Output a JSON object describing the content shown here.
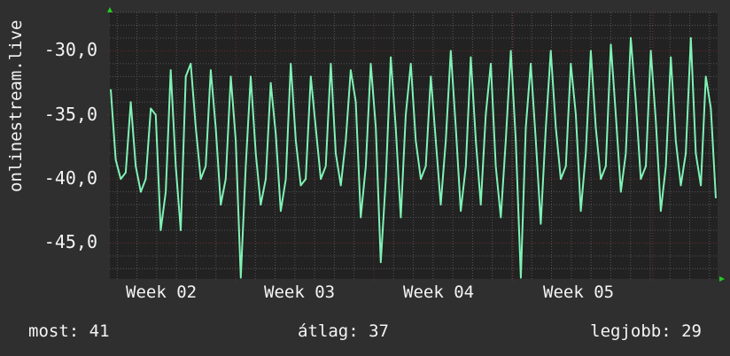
{
  "chart_data": {
    "type": "line",
    "title": "",
    "ylabel": "onlinestream.live",
    "xlabel": "",
    "ylim": [
      -47.8,
      -27
    ],
    "yticks": [
      -30,
      -35,
      -40,
      -45
    ],
    "ytick_labels": [
      "-30,0",
      "-35,0",
      "-40,0",
      "-45,0"
    ],
    "xtick_labels": [
      "Week 02",
      "Week 03",
      "Week 04",
      "Week 05"
    ],
    "grid": true,
    "colors": {
      "background": "#2f2f2f",
      "plot": "#222222",
      "line": "#7ff2b5",
      "grid": "#555555",
      "major_grid": "#6e2c2c",
      "arrow": "#22cc22"
    },
    "series": [
      {
        "values": [
          -33,
          -38.5,
          -40,
          -39.5,
          -34,
          -39,
          -41,
          -40,
          -34.5,
          -35,
          -44,
          -41,
          -31.5,
          -39,
          -44,
          -32,
          -31,
          -36,
          -40,
          -39,
          -31.5,
          -36,
          -42,
          -40,
          -32,
          -37,
          -47.7,
          -39,
          -32,
          -38,
          -42,
          -40,
          -32.5,
          -36.5,
          -42.5,
          -40,
          -31,
          -37,
          -40.5,
          -40,
          -32,
          -36,
          -40,
          -39,
          -31,
          -38,
          -40.5,
          -37,
          -31.5,
          -34,
          -43,
          -39,
          -31,
          -36,
          -46.5,
          -40,
          -30.5,
          -36,
          -43,
          -35,
          -31,
          -37,
          -40,
          -39,
          -32,
          -37,
          -42,
          -37,
          -30,
          -36,
          -42.5,
          -39,
          -30.5,
          -37,
          -42,
          -35,
          -31,
          -39,
          -43,
          -37,
          -30,
          -37,
          -47.7,
          -36,
          -31,
          -37,
          -43.5,
          -36,
          -30,
          -36,
          -40,
          -39,
          -31,
          -35,
          -42.5,
          -38,
          -30,
          -36,
          -40,
          -39,
          -29.5,
          -35,
          -41,
          -38,
          -29,
          -34,
          -40,
          -39,
          -30,
          -35.5,
          -42.5,
          -39,
          -30.5,
          -37,
          -40.5,
          -38,
          -29,
          -38,
          -40.5,
          -32,
          -34.5,
          -41.5
        ]
      }
    ]
  },
  "legend": {
    "current": "most: 41",
    "average": "átlag: 37",
    "max": "legjobb: 29"
  }
}
